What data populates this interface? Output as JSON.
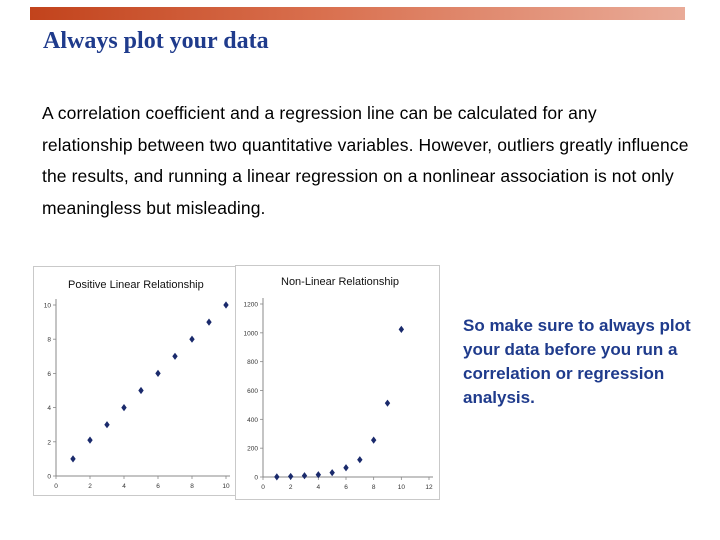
{
  "slide": {
    "title": "Always plot your data",
    "body": "A correlation coefficient and a regression line can be calculated for any relationship between two quantitative variables. However, outliers greatly influence the results, and running a linear regression on a nonlinear association is not only meaningless but misleading.",
    "callout": "So make sure to always plot your data before you run a correlation or regression analysis.",
    "accent_color": "#c2431c",
    "title_color": "#1f3b8c"
  },
  "chart_data": [
    {
      "type": "scatter",
      "title": "Positive Linear Relationship",
      "xlim": [
        0,
        10
      ],
      "ylim": [
        0,
        10
      ],
      "x_ticks": [
        0,
        2,
        4,
        6,
        8,
        10
      ],
      "y_ticks": [
        0,
        2,
        4,
        6,
        8,
        10
      ],
      "x": [
        1,
        2,
        3,
        4,
        5,
        6,
        7,
        8,
        9,
        10
      ],
      "y": [
        1,
        2.1,
        3,
        4,
        5,
        6,
        7,
        8,
        9,
        10
      ],
      "marker_color": "#1a2a6c",
      "grid": false
    },
    {
      "type": "scatter",
      "title": "Non-Linear Relationship",
      "xlim": [
        0,
        12
      ],
      "ylim": [
        0,
        1200
      ],
      "x_ticks": [
        0,
        2,
        4,
        6,
        8,
        10,
        12
      ],
      "y_ticks": [
        0,
        200,
        400,
        600,
        800,
        1000,
        1200
      ],
      "x": [
        1,
        2,
        3,
        4,
        5,
        6,
        7,
        8,
        9,
        10
      ],
      "y": [
        1,
        4,
        9,
        16,
        30,
        64,
        120,
        256,
        512,
        1024
      ],
      "marker_color": "#1a2a6c",
      "grid": false
    }
  ]
}
